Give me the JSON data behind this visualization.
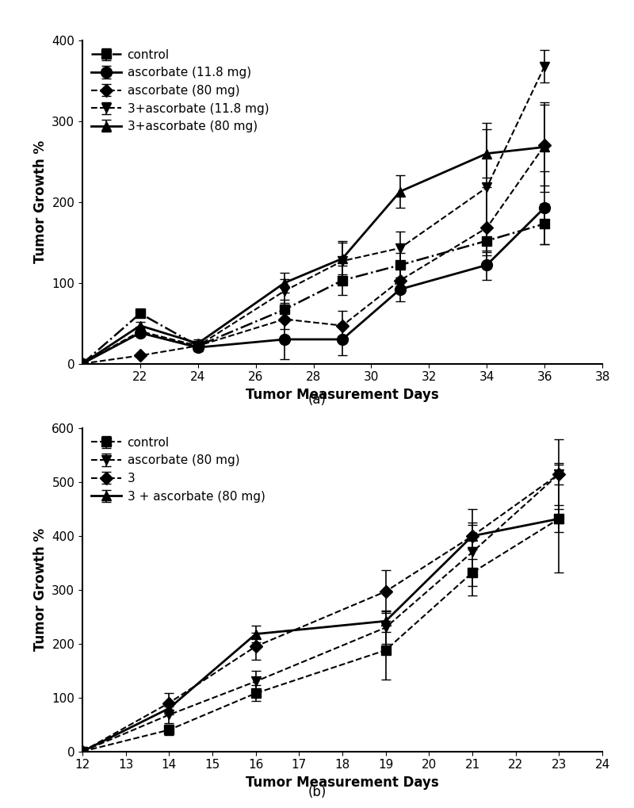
{
  "panel_a": {
    "title": "(a)",
    "xlabel": "Tumor Measurement Days",
    "ylabel": "Tumor Growth %",
    "xlim": [
      20,
      38
    ],
    "ylim": [
      0,
      400
    ],
    "xticks": [
      22,
      24,
      26,
      28,
      30,
      32,
      34,
      36,
      38
    ],
    "yticks": [
      0,
      100,
      200,
      300,
      400
    ],
    "series": [
      {
        "label": "control",
        "x": [
          20,
          22,
          24,
          27,
          29,
          31,
          34,
          36
        ],
        "y": [
          0,
          62,
          22,
          67,
          103,
          122,
          152,
          173
        ],
        "yerr": [
          0,
          0,
          5,
          12,
          18,
          15,
          18,
          25
        ],
        "linestyle": "-.",
        "marker": "s",
        "markersize": 8,
        "linewidth": 1.8
      },
      {
        "label": "ascorbate (11.8 mg)",
        "x": [
          20,
          22,
          24,
          27,
          29,
          31,
          34,
          36
        ],
        "y": [
          0,
          38,
          20,
          30,
          30,
          92,
          122,
          193
        ],
        "yerr": [
          0,
          0,
          5,
          25,
          20,
          15,
          18,
          45
        ],
        "linestyle": "-",
        "marker": "o",
        "markersize": 10,
        "linewidth": 2.0
      },
      {
        "label": "ascorbate (80 mg)",
        "x": [
          20,
          22,
          24,
          27,
          29,
          31,
          34,
          36
        ],
        "y": [
          0,
          10,
          22,
          55,
          47,
          103,
          168,
          270
        ],
        "yerr": [
          0,
          0,
          5,
          12,
          18,
          15,
          50,
          50
        ],
        "linestyle": "--",
        "marker": "D",
        "markersize": 8,
        "linewidth": 1.5
      },
      {
        "label": "3+ascorbate (11.8 mg)",
        "x": [
          20,
          22,
          24,
          27,
          29,
          31,
          34,
          36
        ],
        "y": [
          0,
          40,
          22,
          90,
          127,
          143,
          218,
          368
        ],
        "yerr": [
          0,
          5,
          5,
          15,
          25,
          20,
          80,
          20
        ],
        "linestyle": "--",
        "marker": "v",
        "markersize": 9,
        "linewidth": 1.5
      },
      {
        "label": "3+ascorbate (80 mg)",
        "x": [
          20,
          22,
          24,
          27,
          29,
          31,
          34,
          36
        ],
        "y": [
          0,
          47,
          25,
          100,
          130,
          213,
          260,
          268
        ],
        "yerr": [
          0,
          5,
          5,
          12,
          20,
          20,
          30,
          55
        ],
        "linestyle": "-",
        "marker": "^",
        "markersize": 9,
        "linewidth": 2.0
      }
    ]
  },
  "panel_b": {
    "title": "(b)",
    "xlabel": "Tumor Measurement Days",
    "ylabel": "Tumor Growth %",
    "xlim": [
      12,
      24
    ],
    "ylim": [
      0,
      600
    ],
    "xticks": [
      12,
      13,
      14,
      15,
      16,
      17,
      18,
      19,
      20,
      21,
      22,
      23,
      24
    ],
    "yticks": [
      0,
      100,
      200,
      300,
      400,
      500,
      600
    ],
    "series": [
      {
        "label": "control",
        "x": [
          12,
          14,
          16,
          19,
          21,
          23
        ],
        "y": [
          0,
          40,
          108,
          188,
          332,
          432
        ],
        "yerr": [
          0,
          10,
          15,
          55,
          25,
          25
        ],
        "linestyle": "--",
        "marker": "s",
        "markersize": 8,
        "linewidth": 1.5
      },
      {
        "label": "ascorbate (80 mg)",
        "x": [
          12,
          14,
          16,
          19,
          21,
          23
        ],
        "y": [
          0,
          68,
          130,
          230,
          370,
          515
        ],
        "yerr": [
          0,
          15,
          20,
          30,
          80,
          65
        ],
        "linestyle": "--",
        "marker": "v",
        "markersize": 9,
        "linewidth": 1.5
      },
      {
        "label": "3",
        "x": [
          12,
          14,
          16,
          19,
          21,
          23
        ],
        "y": [
          0,
          90,
          195,
          297,
          400,
          515
        ],
        "yerr": [
          0,
          18,
          25,
          40,
          25,
          20
        ],
        "linestyle": "--",
        "marker": "D",
        "markersize": 8,
        "linewidth": 1.5
      },
      {
        "label": "3 + ascorbate (80 mg)",
        "x": [
          12,
          14,
          16,
          19,
          21,
          23
        ],
        "y": [
          0,
          80,
          218,
          242,
          400,
          432
        ],
        "yerr": [
          0,
          12,
          15,
          20,
          20,
          100
        ],
        "linestyle": "-",
        "marker": "^",
        "markersize": 9,
        "linewidth": 2.0
      }
    ]
  }
}
